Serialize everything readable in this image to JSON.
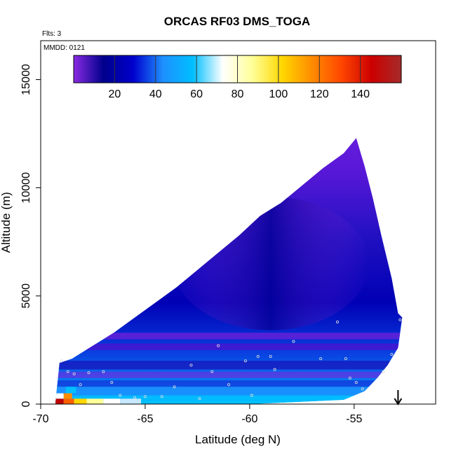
{
  "chart_data": {
    "type": "heatmap",
    "title": "ORCAS RF03 DMS_TOGA",
    "annotations": {
      "flights": "Flts: 3",
      "date": "MMDD: 0121"
    },
    "xlabel": "Latitude (deg N)",
    "ylabel": "Altitude (m)",
    "xlim": [
      -70,
      -51.1
    ],
    "ylim": [
      0,
      16800
    ],
    "x_ticks": [
      -70,
      -65,
      -60,
      -55
    ],
    "x_tick_labels": [
      "-70",
      "-65",
      "-60",
      "-55"
    ],
    "y_ticks": [
      0,
      5000,
      10000,
      15000
    ],
    "y_tick_labels": [
      "0",
      "5000",
      "10000",
      "15000"
    ],
    "colorbar": {
      "range": [
        0,
        160
      ],
      "ticks": [
        20,
        40,
        60,
        80,
        100,
        120,
        140
      ],
      "tick_labels": [
        "20",
        "40",
        "60",
        "80",
        "100",
        "120",
        "140"
      ],
      "colors": [
        "#8a2be2",
        "#00008b",
        "#0000cd",
        "#1e90ff",
        "#00bfff",
        "#ffffff",
        "#ffff99",
        "#ffd700",
        "#ff8c00",
        "#ff4500",
        "#cc0000",
        "#a52a2a"
      ]
    },
    "arrow_marker": {
      "x": -52.9,
      "label": ""
    },
    "envelope_top": [
      [
        -69.1,
        1900
      ],
      [
        -68.5,
        2100
      ],
      [
        -67.5,
        2700
      ],
      [
        -66.5,
        3300
      ],
      [
        -65.5,
        4000
      ],
      [
        -64.5,
        4700
      ],
      [
        -63.5,
        5400
      ],
      [
        -62.5,
        6200
      ],
      [
        -61.5,
        7000
      ],
      [
        -60.5,
        7800
      ],
      [
        -59.5,
        8700
      ],
      [
        -58.5,
        9300
      ],
      [
        -57.5,
        10100
      ],
      [
        -56.5,
        10900
      ],
      [
        -55.5,
        11600
      ],
      [
        -54.9,
        12300
      ],
      [
        -54.5,
        11000
      ],
      [
        -54.1,
        9500
      ],
      [
        -53.7,
        7800
      ],
      [
        -53.2,
        5800
      ],
      [
        -52.9,
        4200
      ]
    ],
    "envelope_bottom": [
      [
        -69.3,
        0
      ],
      [
        -60,
        0
      ],
      [
        -55.5,
        200
      ],
      [
        -54.5,
        600
      ],
      [
        -53.9,
        1200
      ],
      [
        -53.4,
        1800
      ],
      [
        -52.9,
        2600
      ],
      [
        -52.7,
        4000
      ]
    ],
    "sample_points": [
      [
        -69.0,
        2000
      ],
      [
        -68.7,
        1500
      ],
      [
        -68.4,
        1400
      ],
      [
        -68.1,
        900
      ],
      [
        -67.7,
        1450
      ],
      [
        -67.0,
        1500
      ],
      [
        -66.6,
        1000
      ],
      [
        -66.2,
        400
      ],
      [
        -65.5,
        300
      ],
      [
        -65.0,
        350
      ],
      [
        -64.2,
        350
      ],
      [
        -63.6,
        800
      ],
      [
        -62.8,
        1800
      ],
      [
        -62.4,
        250
      ],
      [
        -61.8,
        1500
      ],
      [
        -61.0,
        900
      ],
      [
        -60.2,
        2000
      ],
      [
        -59.9,
        400
      ],
      [
        -59.6,
        2200
      ],
      [
        -58.8,
        1600
      ],
      [
        -57.9,
        2900
      ],
      [
        -56.6,
        2100
      ],
      [
        -55.8,
        3800
      ],
      [
        -55.4,
        2100
      ],
      [
        -55.2,
        1200
      ],
      [
        -54.9,
        1000
      ],
      [
        -54.6,
        700
      ],
      [
        -53.6,
        1500
      ],
      [
        -53.2,
        2300
      ],
      [
        -52.8,
        3900
      ],
      [
        -61.5,
        2700
      ],
      [
        -59.0,
        2200
      ]
    ]
  }
}
